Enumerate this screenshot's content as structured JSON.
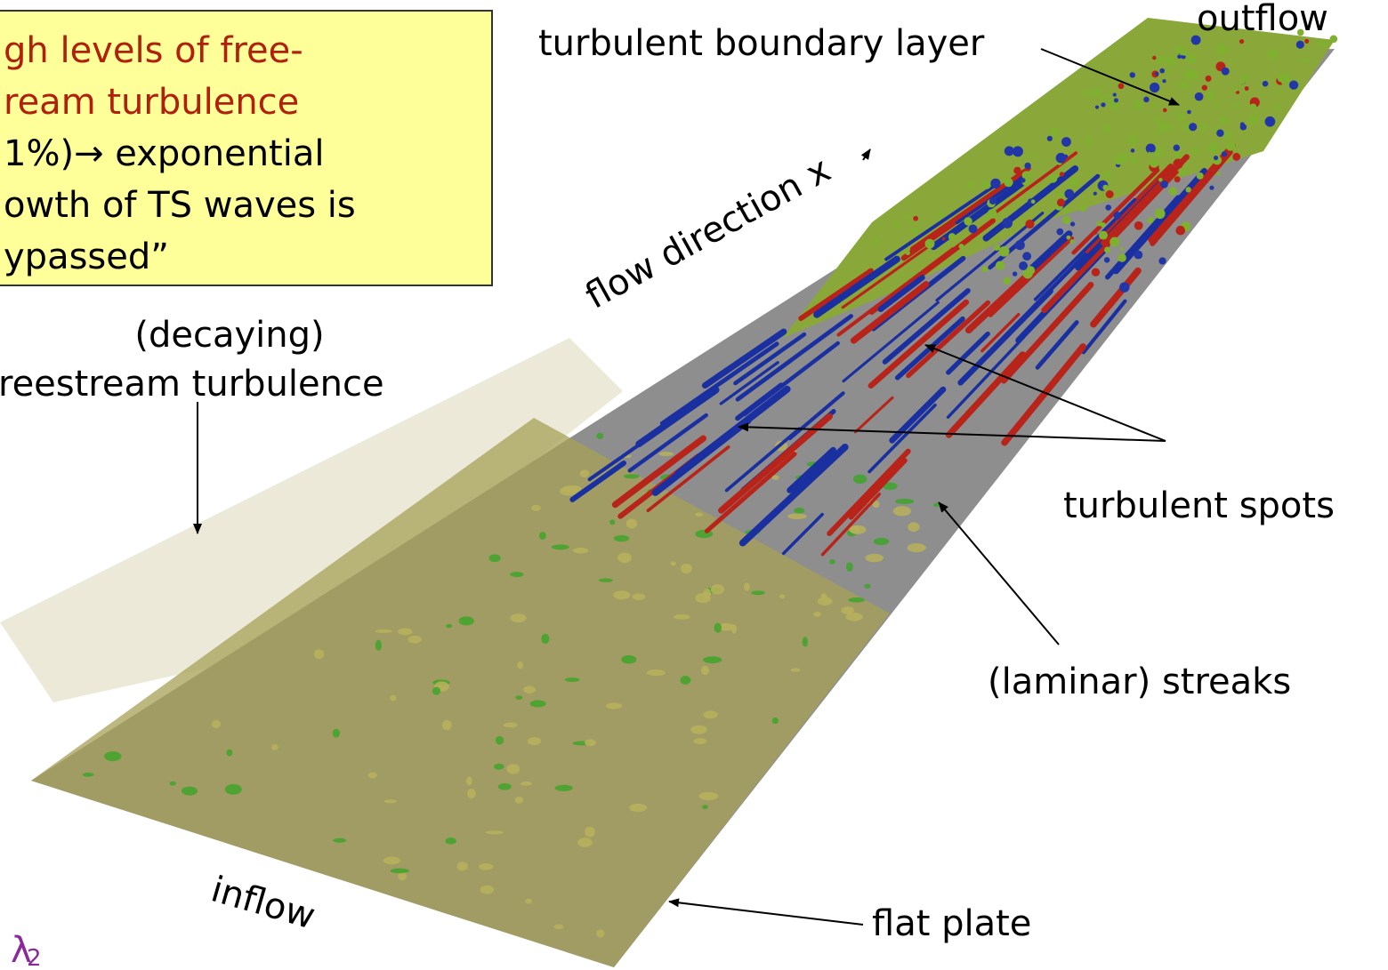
{
  "callout": {
    "highlight_lines": [
      "gh levels of free-",
      "ream turbulence"
    ],
    "body_lines": [
      "1%)→ exponential",
      "owth of TS waves is",
      "ypassed”"
    ]
  },
  "labels": {
    "turbulent_boundary_layer": "turbulent boundary layer",
    "outflow": "outflow",
    "flow_direction": "flow direction x",
    "decaying": [
      "(decaying)",
      "reestream turbulence"
    ],
    "turbulent_spots": "turbulent spots",
    "laminar_streaks": "(laminar) streaks",
    "inflow": "inflow",
    "flat_plate": "flat plate",
    "lambda_symbol": "λ",
    "lambda_subscript": "2"
  }
}
